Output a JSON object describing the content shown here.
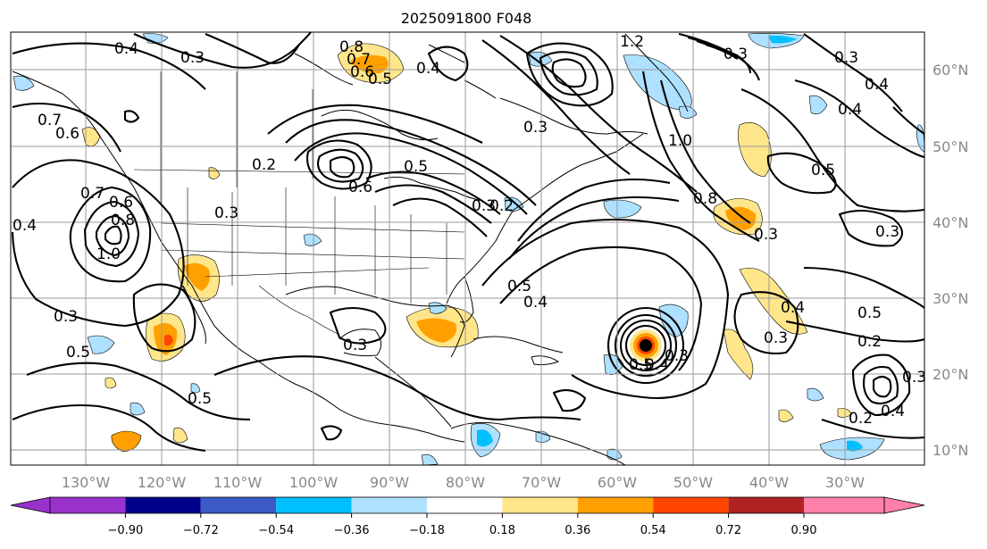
{
  "figure": {
    "title": "2025091800 F048"
  },
  "lat_labels": [
    "60°N",
    "50°N",
    "40°N",
    "30°N",
    "20°N",
    "10°N"
  ],
  "lon_labels": [
    "130°W",
    "120°W",
    "110°W",
    "100°W",
    "90°W",
    "80°W",
    "70°W",
    "60°W",
    "50°W",
    "40°W",
    "30°W"
  ],
  "colorbar": {
    "ticks": [
      "−0.90",
      "−0.72",
      "−0.54",
      "−0.36",
      "−0.18",
      "0.18",
      "0.36",
      "0.54",
      "0.72",
      "0.90"
    ],
    "colors": [
      "#9932cc",
      "#00008b",
      "#3b5ac8",
      "#00bfff",
      "#aee0ff",
      "#ffffff",
      "#ffe68a",
      "#ffa000",
      "#ff4500",
      "#b22222",
      "#ff80aa"
    ]
  },
  "contour_labels": [
    "0.4",
    "0.3",
    "0.8",
    "0.7",
    "0.6",
    "0.5",
    "0.4",
    "1.2",
    "0.3",
    "0.3",
    "0.4",
    "0.7",
    "0.6",
    "0.3",
    "0.4",
    "1.0",
    "0.2",
    "0.5",
    "0.6",
    "0.5",
    "0.8",
    "0.3",
    "0.2",
    "0.7",
    "0.6",
    "0.8",
    "1.0",
    "0.4",
    "0.3",
    "0.5",
    "0.4",
    "0.3",
    "0.5",
    "0.4",
    "0.3",
    "0.5",
    "0.3",
    "0.3",
    "0.5",
    "0.5",
    "0.4",
    "0.3",
    "0.2",
    "0.3",
    "0.2",
    "0.4",
    "0.3"
  ],
  "chart_data": {
    "type": "contour-map",
    "title": "2025091800 F048",
    "lon_range": [
      -137,
      -17
    ],
    "lat_range": [
      8,
      65
    ],
    "colorbar_levels": [
      -0.9,
      -0.72,
      -0.54,
      -0.36,
      -0.18,
      0.18,
      0.36,
      0.54,
      0.72,
      0.9
    ],
    "grid": true
  }
}
